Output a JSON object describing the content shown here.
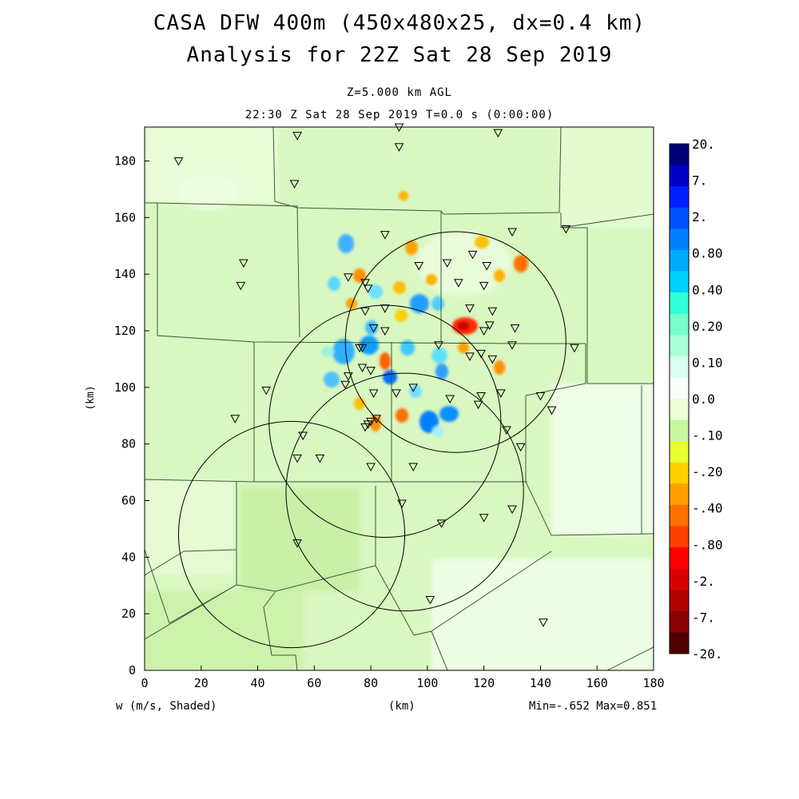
{
  "header": {
    "title_line1": "CASA DFW 400m (450x480x25, dx=0.4 km)",
    "title_line2": "Analysis for 22Z Sat 28 Sep 2019",
    "subtitle_level": "Z=5.000 km AGL",
    "subtitle_time": "22:30 Z Sat 28 Sep 2019    T=0.0 s (0:00:00)"
  },
  "footer": {
    "variable_label": "w (m/s, Shaded)",
    "x_unit": "(km)",
    "minmax": "Min=-.652 Max=0.851"
  },
  "chart_data": {
    "type": "heatmap",
    "title": "CASA DFW 400m (450x480x25, dx=0.4 km)",
    "xlabel": "(km)",
    "ylabel": "(km)",
    "xlim": [
      0,
      180
    ],
    "ylim": [
      0,
      192
    ],
    "x_ticks": [
      0,
      20,
      40,
      60,
      80,
      100,
      120,
      140,
      160,
      180
    ],
    "y_ticks": [
      0,
      20,
      40,
      60,
      80,
      100,
      120,
      140,
      160,
      180
    ],
    "variable": "w (m/s, Shaded)",
    "min": -0.652,
    "max": 0.851,
    "colorbar": {
      "labels": [
        "20.",
        "7.",
        "2.",
        "0.80",
        "0.40",
        "0.20",
        "0.10",
        "0.0",
        "-.10",
        "-.20",
        "-.40",
        "-.80",
        "-2.",
        "-7.",
        "-20."
      ],
      "colors": [
        "#00007a",
        "#0000c8",
        "#0020ff",
        "#0050ff",
        "#0080ff",
        "#00aaff",
        "#00d0ff",
        "#30ffd8",
        "#78ffc8",
        "#a8ffd8",
        "#d8fff0",
        "#f8fff8",
        "#eaffd8",
        "#c8f5a0",
        "#e8ff30",
        "#ffd000",
        "#ffa000",
        "#ff7000",
        "#ff4000",
        "#ff0000",
        "#d80000",
        "#b00000",
        "#880000",
        "#500000"
      ]
    },
    "radar_rings": [
      {
        "center_x": 110,
        "center_y": 116,
        "radius": 39
      },
      {
        "center_x": 85,
        "center_y": 88,
        "radius": 41
      },
      {
        "center_x": 92,
        "center_y": 63,
        "radius": 42
      },
      {
        "center_x": 52,
        "center_y": 48,
        "radius": 40
      }
    ],
    "stations": [
      [
        12,
        180
      ],
      [
        54,
        189
      ],
      [
        90,
        192
      ],
      [
        90,
        185
      ],
      [
        125,
        190
      ],
      [
        53,
        172
      ],
      [
        35,
        144
      ],
      [
        34,
        136
      ],
      [
        85,
        154
      ],
      [
        130,
        155
      ],
      [
        149,
        156
      ],
      [
        97,
        143
      ],
      [
        107,
        144
      ],
      [
        116,
        147
      ],
      [
        121,
        143
      ],
      [
        120,
        136
      ],
      [
        111,
        137
      ],
      [
        72,
        139
      ],
      [
        78,
        137
      ],
      [
        79,
        135
      ],
      [
        78,
        127
      ],
      [
        85,
        128
      ],
      [
        115,
        128
      ],
      [
        123,
        127
      ],
      [
        122,
        122
      ],
      [
        120,
        120
      ],
      [
        131,
        121
      ],
      [
        81,
        121
      ],
      [
        85,
        120
      ],
      [
        76,
        114
      ],
      [
        77,
        114
      ],
      [
        104,
        115
      ],
      [
        130,
        115
      ],
      [
        152,
        114
      ],
      [
        119,
        112
      ],
      [
        115,
        111
      ],
      [
        123,
        110
      ],
      [
        77,
        107
      ],
      [
        80,
        106
      ],
      [
        72,
        104
      ],
      [
        71,
        101
      ],
      [
        81,
        98
      ],
      [
        89,
        98
      ],
      [
        95,
        100
      ],
      [
        43,
        99
      ],
      [
        108,
        96
      ],
      [
        118,
        94
      ],
      [
        119,
        97
      ],
      [
        126,
        98
      ],
      [
        140,
        97
      ],
      [
        144,
        92
      ],
      [
        32,
        89
      ],
      [
        82,
        89
      ],
      [
        80,
        88
      ],
      [
        79,
        87
      ],
      [
        78,
        86
      ],
      [
        128,
        85
      ],
      [
        56,
        83
      ],
      [
        133,
        79
      ],
      [
        54,
        75
      ],
      [
        62,
        75
      ],
      [
        80,
        72
      ],
      [
        95,
        72
      ],
      [
        91,
        59
      ],
      [
        130,
        57
      ],
      [
        120,
        54
      ],
      [
        105,
        52
      ],
      [
        54,
        45
      ],
      [
        101,
        25
      ],
      [
        141,
        17
      ]
    ]
  }
}
